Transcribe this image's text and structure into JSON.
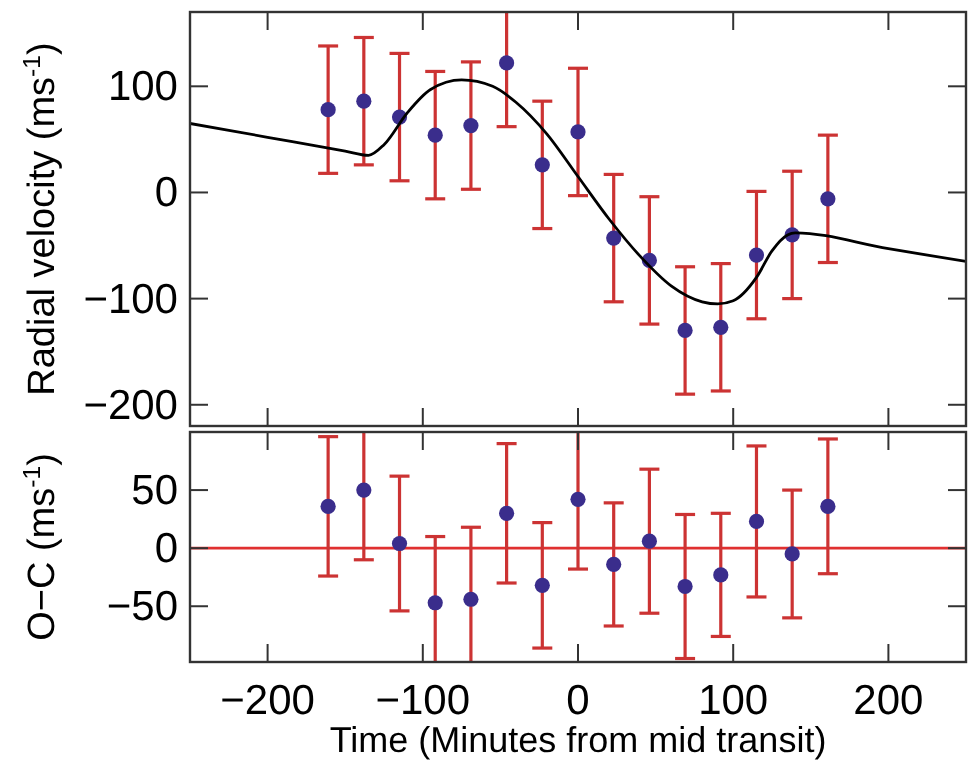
{
  "chart_data": [
    {
      "type": "scatter",
      "ylabel": "Radial velocity (ms$^{-1}$)",
      "xlim": [
        -250,
        250
      ],
      "xticks": [
        -200,
        -100,
        0,
        100,
        200
      ],
      "ylim": [
        -220,
        170
      ],
      "yticks": [
        -200,
        -100,
        0,
        100
      ],
      "tick_labels": "y",
      "grid": false,
      "series": [
        {
          "color": "#3a2d8c",
          "marker": "circle",
          "x": [
            -161,
            -138,
            -115,
            -92,
            -69,
            -46,
            -23,
            0,
            23,
            46,
            69,
            92,
            115,
            138,
            161
          ],
          "values": [
            78,
            86,
            71,
            54,
            63,
            122,
            26,
            57,
            -43,
            -64,
            -130,
            -127,
            -59,
            -40,
            -6
          ],
          "errors": [
            60,
            60,
            60,
            60,
            60,
            60,
            60,
            60,
            60,
            60,
            60,
            60,
            60,
            60,
            60
          ]
        },
        {
          "type": "line",
          "color": "#000000",
          "marker": "none",
          "x": [
            -250,
            -200,
            -150,
            -135,
            -125,
            -110,
            -95,
            -75,
            -55,
            -40,
            -20,
            0,
            20,
            40,
            60,
            80,
            90,
            100,
            115,
            125,
            135,
            140,
            200,
            250
          ],
          "values": [
            65,
            52,
            39,
            35,
            45,
            75,
            97,
            106,
            100,
            85,
            55,
            15,
            -25,
            -60,
            -88,
            -103,
            -105,
            -102,
            -80,
            -55,
            -40,
            -38,
            -53,
            -65
          ]
        }
      ]
    },
    {
      "type": "scatter",
      "ylabel": "O−C (ms$^{-1}$)",
      "xlabel": "Time (Minutes from mid transit)",
      "xlim": [
        -250,
        250
      ],
      "xticks": [
        -200,
        -100,
        0,
        100,
        200
      ],
      "ylim": [
        -98,
        100
      ],
      "yticks": [
        -50,
        0,
        50
      ],
      "grid": false,
      "ref_lines": [
        {
          "axis": "y",
          "value": 0,
          "color": "#e03030"
        }
      ],
      "series": [
        {
          "color": "#3a2d8c",
          "marker": "circle",
          "x": [
            -161,
            -138,
            -115,
            -92,
            -69,
            -46,
            -23,
            0,
            23,
            46,
            69,
            92,
            115,
            138,
            161
          ],
          "values": [
            36,
            50,
            4,
            -47,
            -44,
            30,
            -32,
            42,
            -14,
            6,
            -33,
            -23,
            23,
            -5,
            36
          ],
          "errors": [
            60,
            60,
            58,
            57,
            62,
            60,
            54,
            60,
            53,
            62,
            62,
            53,
            65,
            55,
            58
          ]
        }
      ]
    }
  ]
}
